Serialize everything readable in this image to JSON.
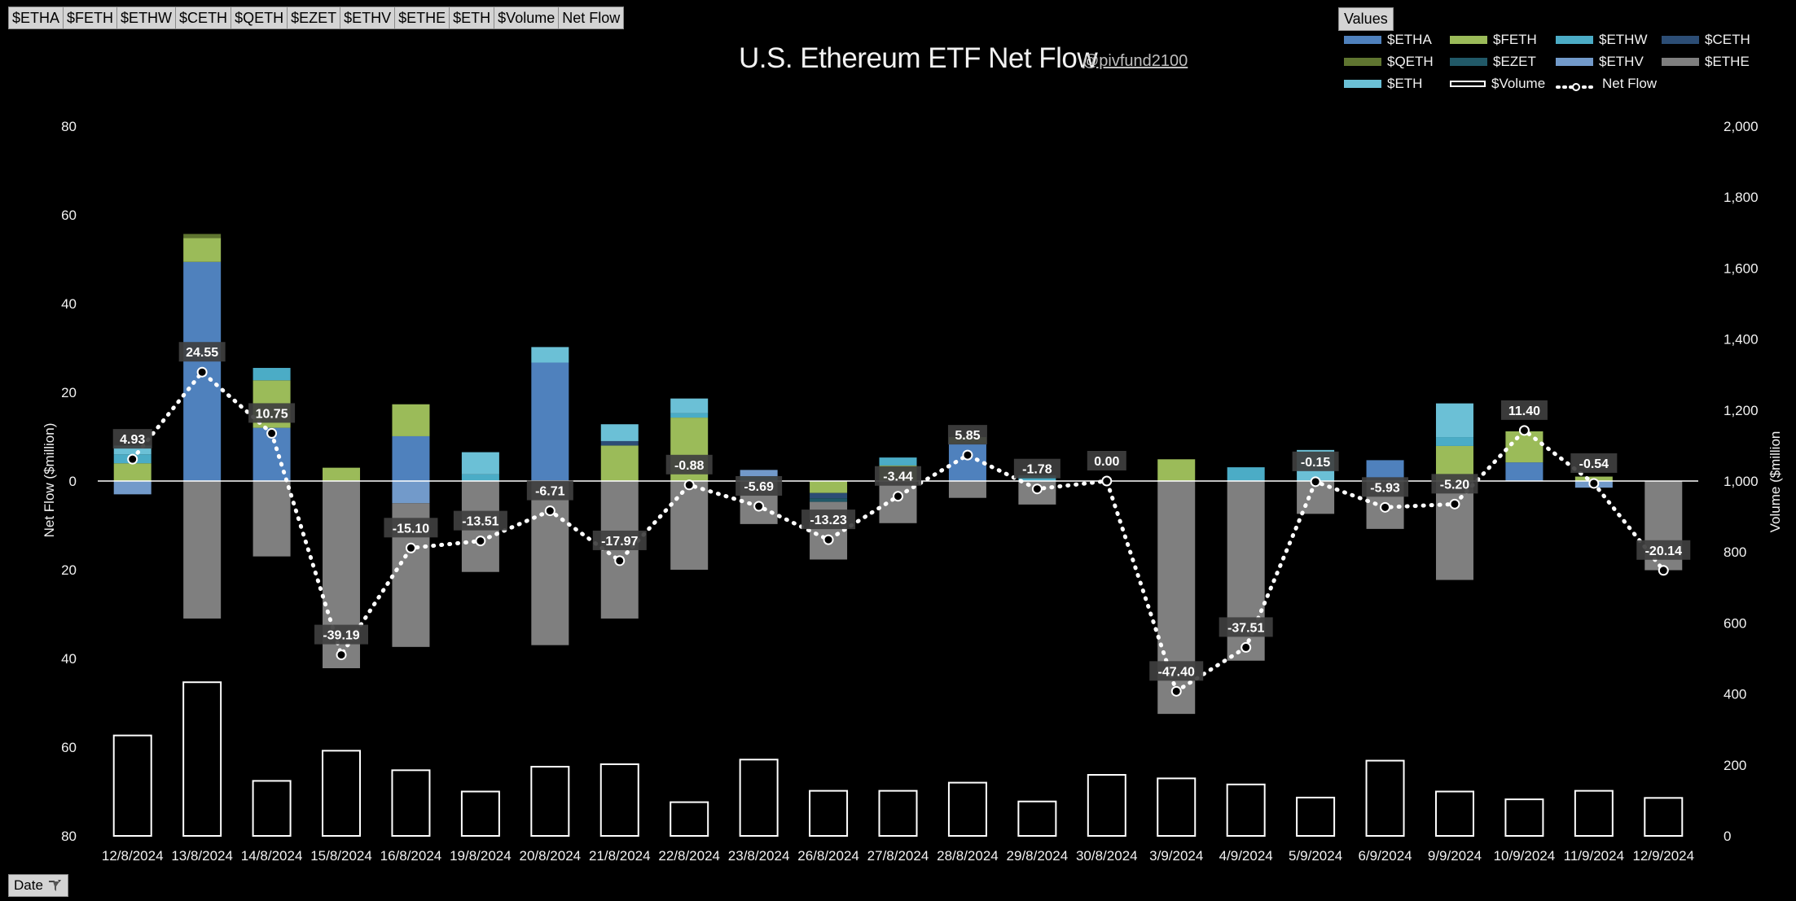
{
  "toolbar": {
    "fields": [
      "$ETHA",
      "$FETH",
      "$ETHW",
      "$CETH",
      "$QETH",
      "$EZET",
      "$ETHV",
      "$ETHE",
      "$ETH",
      "$Volume",
      "Net Flow"
    ],
    "values_label": "Values",
    "date_label": "Date"
  },
  "colors": {
    "ETHA": "#4f81bd",
    "FETH": "#9bbb59",
    "ETHW": "#4bacc6",
    "CETH": "#2c4d75",
    "QETH": "#5f7530",
    "EZET": "#215968",
    "ETHV": "#729aca",
    "ETHE": "#7f7f7f",
    "ETH": "#6bc0d6",
    "Volume": "#ffffff",
    "NetFlow": "#ffffff",
    "negative_tick": "#ff0000"
  },
  "chart_data": {
    "type": "bar",
    "title": "U.S. Ethereum ETF Net Flow",
    "subtitle": "@pivfund2100",
    "ylabel": "Net Flow ($million)",
    "y2label": "Volume ($million",
    "ylim": [
      -80,
      80
    ],
    "y_ticks": [
      "80",
      "60",
      "40",
      "20",
      "0",
      "20",
      "40",
      "60",
      "80"
    ],
    "y2lim": [
      0,
      2000
    ],
    "y2_ticks": [
      "0",
      "200",
      "400",
      "600",
      "800",
      "1,000",
      "1,200",
      "1,400",
      "1,600",
      "1,800",
      "2,000"
    ],
    "legend_position": "top-right",
    "categories": [
      "12/8/2024",
      "13/8/2024",
      "14/8/2024",
      "15/8/2024",
      "16/8/2024",
      "19/8/2024",
      "20/8/2024",
      "21/8/2024",
      "22/8/2024",
      "23/8/2024",
      "26/8/2024",
      "27/8/2024",
      "28/8/2024",
      "29/8/2024",
      "30/8/2024",
      "3/9/2024",
      "4/9/2024",
      "5/9/2024",
      "6/9/2024",
      "9/9/2024",
      "10/9/2024",
      "11/9/2024",
      "12/9/2024"
    ],
    "series": [
      {
        "name": "$ETHA",
        "key": "ETHA",
        "values": [
          0,
          49.4,
          12.0,
          0,
          10.1,
          0,
          26.7,
          0,
          0,
          0,
          0,
          0,
          8.4,
          0,
          0,
          0,
          0,
          0,
          4.7,
          0,
          4.2,
          0,
          0
        ]
      },
      {
        "name": "$FETH",
        "key": "FETH",
        "values": [
          4.0,
          5.4,
          10.7,
          3.0,
          7.2,
          0,
          0,
          8.0,
          14.3,
          0,
          -2.7,
          3.5,
          1.5,
          0,
          0,
          4.9,
          0,
          0,
          0,
          7.9,
          7.0,
          1.0,
          0
        ]
      },
      {
        "name": "$ETHW",
        "key": "ETHW",
        "values": [
          2.0,
          0,
          2.8,
          0,
          0,
          1.5,
          0,
          0,
          1.0,
          1.0,
          0,
          1.8,
          0,
          1.3,
          0,
          0,
          3.1,
          0,
          0,
          2.0,
          0,
          0,
          0
        ]
      },
      {
        "name": "$CETH",
        "key": "CETH",
        "values": [
          0,
          0,
          0,
          0,
          0,
          0,
          0,
          1.0,
          0,
          0,
          -1.2,
          0,
          0,
          0,
          0,
          0,
          0,
          0,
          0,
          0,
          0,
          0,
          0
        ]
      },
      {
        "name": "$QETH",
        "key": "QETH",
        "values": [
          0,
          0.9,
          0,
          0,
          0,
          0,
          0,
          0,
          0,
          0,
          0,
          0,
          0,
          0,
          0,
          0,
          0,
          0,
          0,
          0,
          0,
          0,
          0
        ]
      },
      {
        "name": "$EZET",
        "key": "EZET",
        "values": [
          0,
          0,
          0,
          0,
          0,
          0,
          0,
          0,
          0,
          0,
          -0.8,
          0,
          0,
          0,
          0,
          0,
          0,
          0,
          0,
          0,
          0,
          0,
          0
        ]
      },
      {
        "name": "$ETHV",
        "key": "ETHV",
        "values": [
          -3.0,
          0,
          0,
          0,
          -5.0,
          0,
          0,
          0,
          0,
          1.5,
          0,
          0,
          0,
          0,
          0,
          0,
          0,
          0,
          0,
          0,
          0,
          -1.5,
          0
        ]
      },
      {
        "name": "$ETHE",
        "key": "ETHE",
        "values": [
          0,
          -31.0,
          -17.0,
          -42.2,
          -32.4,
          -20.5,
          -37.0,
          -31.0,
          -20.0,
          -9.7,
          -13.0,
          -9.5,
          -3.8,
          -5.3,
          0,
          -52.5,
          -40.5,
          -7.4,
          -10.8,
          -22.3,
          0,
          0,
          -20.1
        ]
      },
      {
        "name": "$ETH",
        "key": "ETH",
        "values": [
          2.0,
          0,
          0,
          0,
          0,
          5.0,
          3.5,
          3.8,
          3.3,
          0,
          0,
          0,
          0,
          0,
          0,
          0,
          0,
          7.0,
          0,
          7.6,
          0,
          0,
          0
        ]
      },
      {
        "name": "$Volume",
        "key": "Volume",
        "axis": "right",
        "values": [
          283,
          433,
          155,
          240,
          185,
          125,
          195,
          202,
          95,
          215,
          127,
          127,
          150,
          97,
          172,
          162,
          145,
          108,
          212,
          125,
          103,
          127,
          107
        ]
      },
      {
        "name": "Net Flow",
        "key": "NetFlow",
        "type": "line",
        "values": [
          4.93,
          24.55,
          10.75,
          -39.19,
          -15.1,
          -13.51,
          -6.71,
          -17.97,
          -0.88,
          -5.69,
          -13.23,
          -3.44,
          5.85,
          -1.78,
          0.0,
          -47.4,
          -37.51,
          -0.15,
          -5.93,
          -5.2,
          11.4,
          -0.54,
          -20.14
        ]
      }
    ],
    "data_labels": [
      "4.93",
      "24.55",
      "10.75",
      "-39.19",
      "-15.10",
      "-13.51",
      "-6.71",
      "-17.97",
      "-0.88",
      "-5.69",
      "-13.23",
      "-3.44",
      "5.85",
      "-1.78",
      "0.00",
      "-47.40",
      "-37.51",
      "-0.15",
      "-5.93",
      "-5.20",
      "11.40",
      "-0.54",
      "-20.14"
    ]
  }
}
